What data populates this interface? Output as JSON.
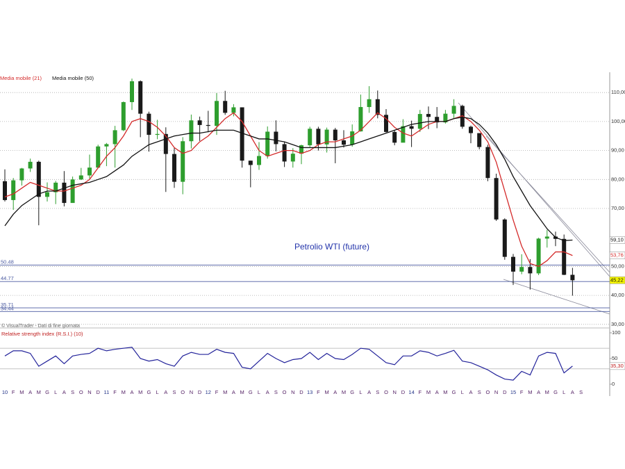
{
  "chart_data": {
    "type": "candlestick",
    "title": "Petrolio WTI (future)",
    "source": "© VisualTrader - Dati di fine giornata",
    "categories": [
      "10",
      "F",
      "M",
      "A",
      "M",
      "G",
      "L",
      "A",
      "S",
      "O",
      "N",
      "D",
      "11",
      "F",
      "M",
      "A",
      "M",
      "G",
      "L",
      "A",
      "S",
      "O",
      "N",
      "D",
      "12",
      "F",
      "M",
      "A",
      "M",
      "G",
      "L",
      "A",
      "S",
      "O",
      "N",
      "D",
      "13",
      "F",
      "M",
      "A",
      "M",
      "G",
      "L",
      "A",
      "S",
      "O",
      "N",
      "D",
      "14",
      "F",
      "M",
      "A",
      "M",
      "G",
      "L",
      "A",
      "S",
      "O",
      "N",
      "D",
      "15",
      "F",
      "M",
      "A",
      "M",
      "G",
      "L",
      "A",
      "S"
    ],
    "open": [
      79.4,
      72.9,
      79.7,
      83.8,
      86.1,
      74.0,
      75.6,
      78.9,
      71.9,
      80.0,
      81.4,
      84.1,
      91.4,
      92.2,
      97.0,
      106.7,
      113.9,
      102.7,
      95.4,
      95.7,
      88.8,
      79.2,
      93.2,
      100.4,
      98.8,
      98.5,
      107.1,
      103.0,
      104.9,
      86.5,
      85.0,
      88.1,
      96.5,
      92.2,
      86.2,
      88.9,
      91.8,
      97.5,
      92.1,
      97.2,
      93.5,
      92.0,
      96.6,
      105.0,
      107.7,
      102.3,
      96.4,
      92.7,
      98.4,
      97.5,
      102.6,
      101.6,
      99.7,
      102.7,
      105.4,
      98.2,
      96.0,
      91.2,
      80.5,
      66.2,
      53.3,
      48.2,
      49.8,
      47.6,
      59.6,
      60.3,
      59.5,
      47.1,
      null
    ],
    "high": [
      83.5,
      80.5,
      84.0,
      87.2,
      86.5,
      79.0,
      79.5,
      82.9,
      81.0,
      84.0,
      88.6,
      92.0,
      92.6,
      98.5,
      106.9,
      114.8,
      114.2,
      103.4,
      100.6,
      98.0,
      91.0,
      94.6,
      102.4,
      101.7,
      103.7,
      109.8,
      110.6,
      106.0,
      104.9,
      86.5,
      92.9,
      98.3,
      100.4,
      92.9,
      90.8,
      92.0,
      98.2,
      98.2,
      97.9,
      97.8,
      97.0,
      99.0,
      109.3,
      112.2,
      110.7,
      104.3,
      97.1,
      100.8,
      100.3,
      104.0,
      105.2,
      105.0,
      104.0,
      107.7,
      105.8,
      98.6,
      95.9,
      92.0,
      82.0,
      66.6,
      54.3,
      54.2,
      52.5,
      59.9,
      62.6,
      62.0,
      61.0,
      49.5,
      null
    ],
    "low": [
      72.4,
      69.5,
      77.9,
      82.6,
      64.2,
      72.4,
      71.5,
      70.7,
      72.6,
      79.8,
      80.3,
      84.0,
      84.6,
      84.1,
      96.7,
      104.0,
      94.6,
      89.6,
      93.9,
      75.7,
      77.1,
      74.9,
      90.7,
      93.3,
      96.3,
      95.4,
      102.3,
      101.8,
      84.1,
      77.3,
      83.3,
      87.2,
      89.7,
      84.3,
      84.1,
      85.3,
      91.2,
      90.0,
      89.3,
      85.6,
      91.0,
      91.3,
      96.5,
      103.0,
      101.1,
      96.2,
      91.8,
      92.9,
      91.2,
      96.4,
      97.4,
      97.7,
      99.3,
      101.2,
      97.5,
      92.5,
      90.4,
      79.4,
      65.7,
      52.3,
      43.6,
      47.3,
      42.0,
      47.0,
      56.5,
      57.0,
      47.0,
      39.9,
      null
    ],
    "close": [
      72.9,
      79.7,
      83.8,
      86.1,
      74.0,
      75.6,
      78.9,
      71.9,
      80.0,
      81.4,
      84.1,
      91.4,
      92.2,
      97.0,
      106.7,
      113.9,
      102.7,
      95.4,
      95.7,
      88.8,
      79.2,
      93.2,
      100.4,
      98.8,
      98.5,
      107.1,
      103.0,
      104.9,
      86.5,
      85.0,
      88.1,
      96.5,
      92.2,
      86.2,
      88.9,
      91.8,
      97.5,
      92.1,
      97.2,
      93.5,
      92.0,
      96.6,
      105.0,
      107.7,
      102.3,
      96.4,
      92.7,
      98.4,
      97.5,
      102.6,
      101.6,
      99.7,
      102.7,
      105.4,
      98.2,
      96.0,
      91.2,
      80.5,
      66.2,
      53.3,
      48.2,
      49.8,
      47.6,
      59.6,
      60.3,
      59.5,
      47.1,
      45.22,
      null
    ],
    "up_color": "#2e9e2e",
    "down_color": "#1a1a1a",
    "ylim": [
      29,
      117
    ],
    "yticks": [
      {
        "value": 110,
        "label": "110,00"
      },
      {
        "value": 100,
        "label": "100,00"
      },
      {
        "value": 90,
        "label": "90,00"
      },
      {
        "value": 80,
        "label": "80,00"
      },
      {
        "value": 70,
        "label": "70,00"
      },
      {
        "value": 50,
        "label": "50,00"
      },
      {
        "value": 40,
        "label": "40,00"
      },
      {
        "value": 30,
        "label": "30,00"
      }
    ],
    "grid": true,
    "levels": [
      50.48,
      44.77,
      35.71,
      34.44
    ],
    "level_color": "#4a5aa0",
    "moving_averages": [
      {
        "name": "Media mobile (21)",
        "color": "#d42a2a",
        "values": [
          74,
          75,
          77,
          79,
          78,
          77,
          76,
          76,
          77,
          78,
          80,
          84,
          88,
          91,
          95,
          100,
          101,
          100,
          98,
          95,
          91,
          89,
          90,
          93,
          95,
          98,
          101,
          103,
          100,
          95,
          90,
          88,
          89,
          90,
          90,
          89,
          90,
          92,
          93,
          93,
          94,
          95,
          97,
          100,
          103,
          101,
          98,
          96,
          95,
          97,
          99,
          100,
          100,
          101,
          102,
          100,
          97,
          93,
          86,
          76,
          66,
          57,
          51,
          50,
          52,
          55,
          55,
          53.76,
          null
        ]
      },
      {
        "name": "Media mobile (50)",
        "color": "#111111",
        "values": [
          64,
          68,
          71,
          73,
          75,
          76,
          76,
          77,
          78,
          78.5,
          79,
          80,
          81,
          83,
          85,
          88,
          90,
          92,
          93,
          94,
          95,
          95.5,
          96,
          96,
          96.5,
          97,
          97,
          97,
          96,
          95,
          94,
          94,
          93.5,
          93,
          92,
          91,
          91,
          91,
          91,
          91,
          91.5,
          92,
          93,
          94,
          95,
          96,
          97,
          98,
          99,
          99.5,
          100,
          100,
          100,
          101,
          101.5,
          101,
          99,
          96,
          92,
          87,
          81,
          76,
          71,
          67,
          63,
          60,
          58.9,
          59.1,
          null
        ]
      }
    ],
    "price_labels": [
      {
        "value": 59.1,
        "label": "59,10",
        "color": "#111111",
        "fill": "#ffffff"
      },
      {
        "value": 53.76,
        "label": "53,76",
        "color": "#d42a2a",
        "fill": "#ffffff"
      },
      {
        "value": 45.22,
        "label": "45,22",
        "color": "#111111",
        "fill": "#f5f500"
      }
    ],
    "rsi": {
      "title": "Relative strength index (R.S.I.) (10)",
      "color": "#22229a",
      "values": [
        55,
        65,
        65,
        60,
        35,
        45,
        55,
        40,
        55,
        58,
        60,
        70,
        65,
        68,
        70,
        72,
        50,
        45,
        48,
        40,
        35,
        55,
        62,
        58,
        58,
        68,
        62,
        60,
        33,
        30,
        45,
        60,
        50,
        42,
        48,
        50,
        62,
        48,
        60,
        50,
        48,
        58,
        70,
        68,
        55,
        42,
        38,
        55,
        55,
        65,
        62,
        55,
        60,
        66,
        45,
        42,
        35,
        28,
        18,
        10,
        8,
        25,
        18,
        55,
        62,
        60,
        22,
        35.3,
        null
      ],
      "ylim": [
        0,
        100
      ],
      "yticks": [
        0,
        50,
        100
      ],
      "bands": [
        30,
        70
      ],
      "last_label": {
        "value": 35.3,
        "label": "35,30"
      }
    }
  }
}
